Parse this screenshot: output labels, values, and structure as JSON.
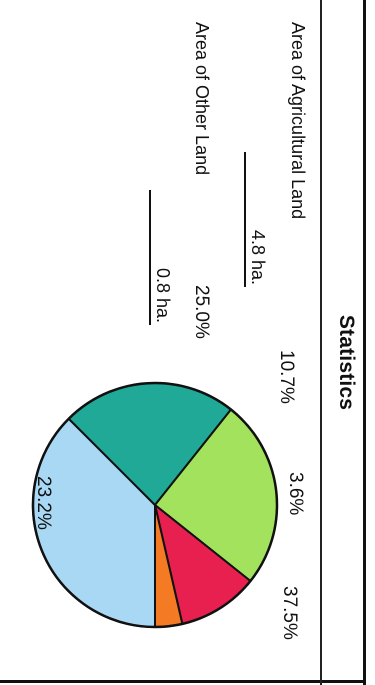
{
  "header": {
    "title": "Statistics"
  },
  "fields": [
    {
      "label": "Area of Agricultural Land",
      "value": "4.8 ha."
    },
    {
      "label": "Area of Other Land",
      "value": "0.8 ha."
    }
  ],
  "chart_data": {
    "type": "pie",
    "slices": [
      {
        "value": 37.5,
        "label": "37.5%",
        "color": "#a8d8f4"
      },
      {
        "value": 23.2,
        "label": "23.2%",
        "color": "#20a996"
      },
      {
        "value": 25.0,
        "label": "25.0%",
        "color": "#a3e25c"
      },
      {
        "value": 10.7,
        "label": "10.7%",
        "color": "#e8204f"
      },
      {
        "value": 3.6,
        "label": "3.6%",
        "color": "#f47b24"
      }
    ],
    "start": "right, clockwise",
    "legend": "none"
  }
}
